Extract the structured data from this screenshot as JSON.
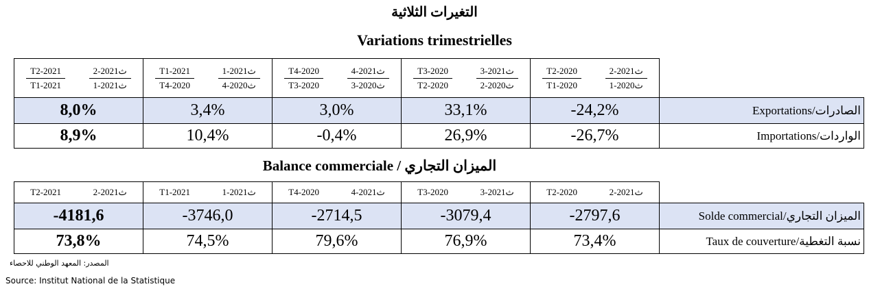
{
  "header": {
    "title_ar": "التغيرات الثلاثية",
    "title_fr": "Variations trimestrielles"
  },
  "table1": {
    "columns": [
      {
        "fr": [
          "T2-2021",
          "T1-2021"
        ],
        "ar": [
          "ث2021-2",
          "ث2021-1"
        ]
      },
      {
        "fr": [
          "T1-2021",
          "T4-2020"
        ],
        "ar": [
          "ث2021-1",
          "ث2020-4"
        ]
      },
      {
        "fr": [
          "T4-2020",
          "T3-2020"
        ],
        "ar": [
          "ث2021-4",
          "ث2020-3"
        ]
      },
      {
        "fr": [
          "T3-2020",
          "T2-2020"
        ],
        "ar": [
          "ث2021-3",
          "ث2020-2"
        ]
      },
      {
        "fr": [
          "T2-2020",
          "T1-2020"
        ],
        "ar": [
          "ث2021-2",
          "ث2020-1"
        ]
      }
    ],
    "rows": [
      {
        "label": "Exportations/الصادرات",
        "cells": [
          "8,0%",
          "3,4%",
          "3,0%",
          "33,1%",
          "-24,2%"
        ]
      },
      {
        "label": "Importations/الواردات",
        "cells": [
          "8,9%",
          "10,4%",
          "-0,4%",
          "26,9%",
          "-26,7%"
        ]
      }
    ]
  },
  "subtitle": "Balance commerciale / الميزان التجاري",
  "table2": {
    "columns": [
      {
        "fr": "T2-2021",
        "ar": "ث2021-2"
      },
      {
        "fr": "T1-2021",
        "ar": "ث2021-1"
      },
      {
        "fr": "T4-2020",
        "ar": "ث2021-4"
      },
      {
        "fr": "T3-2020",
        "ar": "ث2021-3"
      },
      {
        "fr": "T2-2020",
        "ar": "ث2021-2"
      }
    ],
    "rows": [
      {
        "label": "Solde commercial/الميزان التجاري",
        "cells": [
          "-4181,6",
          "-3746,0",
          "-2714,5",
          "-3079,4",
          "-2797,6"
        ]
      },
      {
        "label": "Taux de couverture/نسبة التغطية",
        "cells": [
          "73,8%",
          "74,5%",
          "79,6%",
          "76,9%",
          "73,4%"
        ]
      }
    ]
  },
  "source": {
    "ar": "المصدر: المعهد الوطني للاحصاء",
    "fr": "Source: Institut National de la Statistique"
  }
}
